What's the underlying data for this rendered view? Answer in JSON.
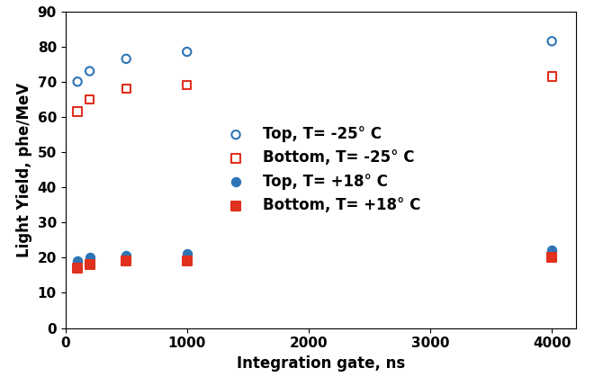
{
  "chart_data": {
    "type": "scatter",
    "x_label": "Integration gate, ns",
    "y_label": "Light Yield, phe/MeV",
    "x": [
      100,
      200,
      500,
      1000,
      4000
    ],
    "series": [
      {
        "name": "Top, T= -25° C",
        "color": "#2e75b6",
        "marker": "circle_open",
        "values": [
          70,
          73,
          76.5,
          78.5,
          81.5
        ]
      },
      {
        "name": "Bottom, T= -25° C",
        "color": "#e0301e",
        "marker": "square_open",
        "values": [
          61.5,
          65,
          68,
          69,
          71.5
        ]
      },
      {
        "name": "Top, T= +18° C",
        "color": "#2e75b6",
        "marker": "circle",
        "values": [
          19,
          20,
          20.5,
          21,
          22
        ]
      },
      {
        "name": "Bottom, T= +18° C",
        "color": "#e0301e",
        "marker": "square",
        "values": [
          17,
          18,
          19,
          19,
          20
        ]
      }
    ],
    "xlim": [
      0,
      4200
    ],
    "xticks": [
      0,
      1000,
      2000,
      3000,
      4000
    ],
    "ylim": [
      0,
      90
    ],
    "yticks": [
      0,
      10,
      20,
      30,
      40,
      50,
      60,
      70,
      80,
      90
    ],
    "grid": false,
    "legend": "center"
  }
}
